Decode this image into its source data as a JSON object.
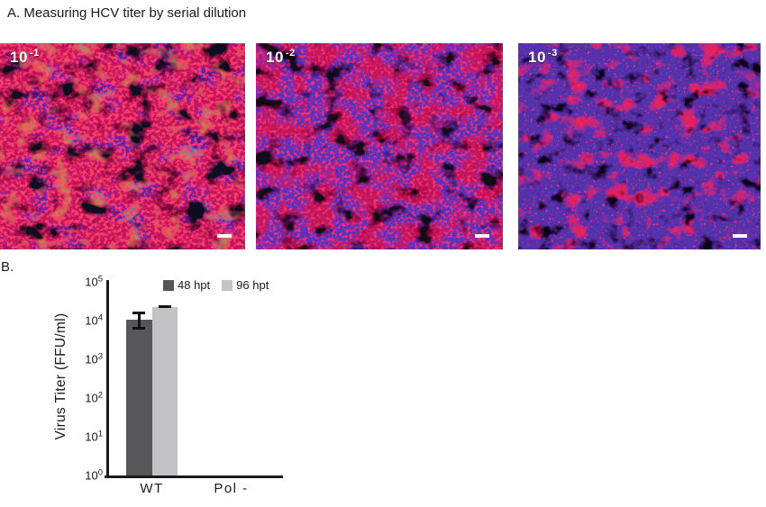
{
  "panel_a": {
    "title": "A. Measuring HCV titer by serial dilution"
  },
  "micrographs": [
    {
      "dilution_base": "10",
      "dilution_exponent": "-1",
      "red_signal": "dense"
    },
    {
      "dilution_base": "10",
      "dilution_exponent": "-2",
      "red_signal": "moderate"
    },
    {
      "dilution_base": "10",
      "dilution_exponent": "-3",
      "red_signal": "sparse"
    }
  ],
  "panel_b": {
    "label": "B."
  },
  "chart_data": {
    "type": "bar",
    "title": "",
    "xlabel": "",
    "ylabel": "Virus Titer (FFU/ml)",
    "y_scale": "log10",
    "ylim": [
      1,
      100000
    ],
    "ytick_exponents": [
      0,
      1,
      2,
      3,
      4,
      5
    ],
    "categories": [
      "WT",
      "Pol -"
    ],
    "series": [
      {
        "name": "48 hpt",
        "color": "#57575a",
        "values": [
          10500,
          0
        ],
        "error_low": [
          6000,
          0
        ],
        "error_high": [
          17000,
          0
        ]
      },
      {
        "name": "96 hpt",
        "color": "#c3c3c5",
        "values": [
          22500,
          0
        ],
        "error_low": [
          21000,
          0
        ],
        "error_high": [
          25000,
          0
        ]
      }
    ],
    "legend_position": "top-inside",
    "grid": false
  },
  "colors": {
    "axis": "#1a1a1a",
    "error_bar": "#111111",
    "micrograph_label": "#ffffff",
    "scale_bar": "#ffffff"
  }
}
